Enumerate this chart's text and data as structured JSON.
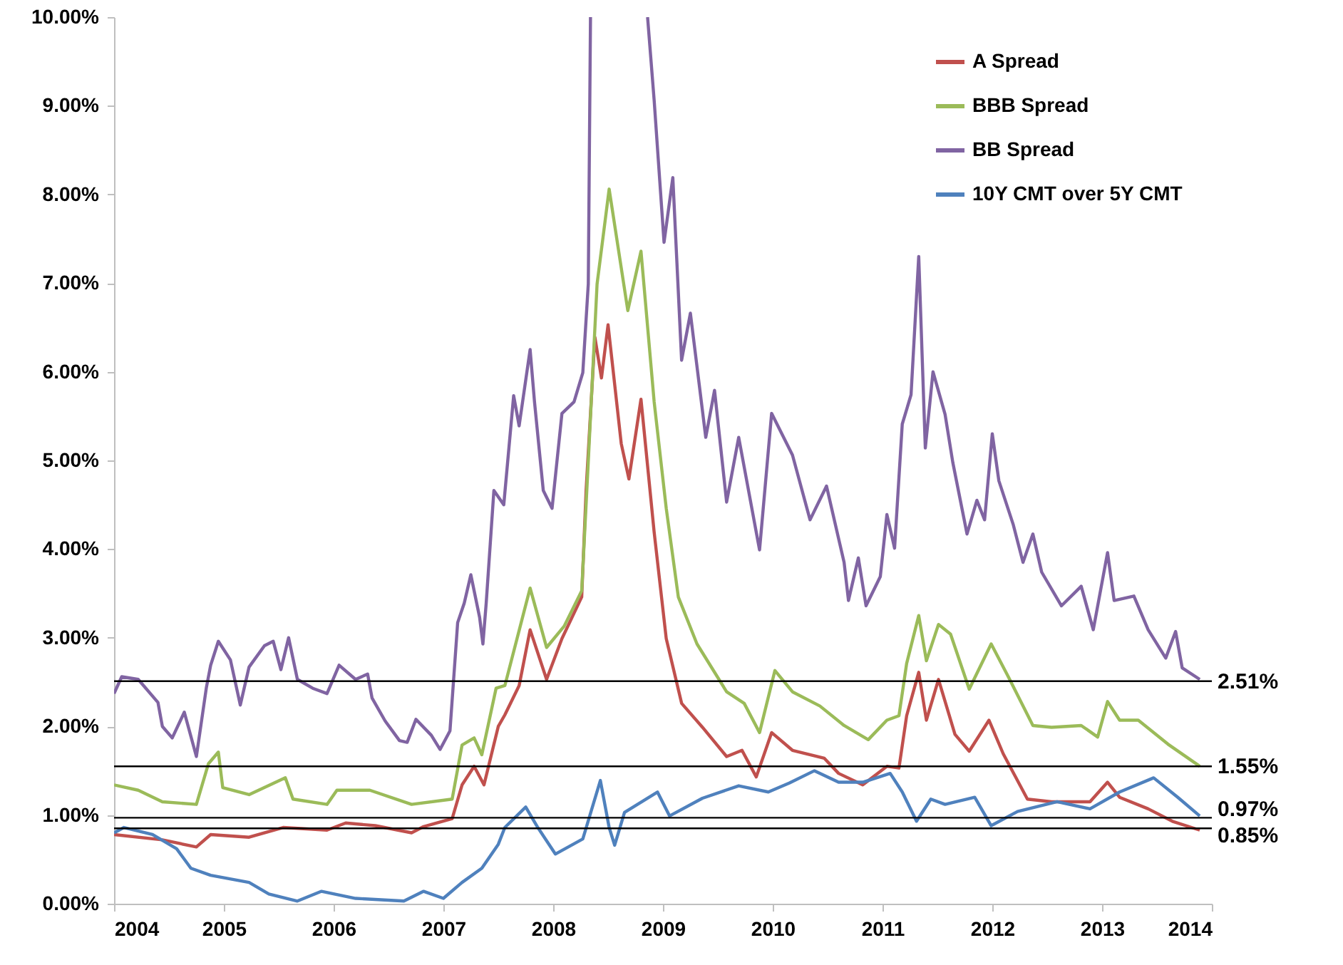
{
  "chart_data": {
    "type": "line",
    "xlim": [
      2004,
      2014
    ],
    "xticks": [
      2004,
      2005,
      2006,
      2007,
      2008,
      2009,
      2010,
      2011,
      2012,
      2013,
      2014
    ],
    "ylim": [
      0,
      10
    ],
    "yticks": [
      {
        "value": 0,
        "label": "0.00%"
      },
      {
        "value": 1,
        "label": "1.00%"
      },
      {
        "value": 2,
        "label": "2.00%"
      },
      {
        "value": 3,
        "label": "3.00%"
      },
      {
        "value": 4,
        "label": "4.00%"
      },
      {
        "value": 5,
        "label": "5.00%"
      },
      {
        "value": 6,
        "label": "6.00%"
      },
      {
        "value": 7,
        "label": "7.00%"
      },
      {
        "value": 8,
        "label": "8.00%"
      },
      {
        "value": 9,
        "label": "9.00%"
      },
      {
        "value": 10,
        "label": "10.00%"
      }
    ],
    "grid": false,
    "legend": "top right",
    "marker": "none",
    "line_style": "solid",
    "series": [
      {
        "name": "A Spread",
        "color": "#c0504d",
        "x": [
          2004.0,
          2004.44,
          2004.75,
          2004.88,
          2005.23,
          2005.54,
          2005.94,
          2006.11,
          2006.38,
          2006.71,
          2006.82,
          2007.08,
          2007.17,
          2007.28,
          2007.37,
          2007.5,
          2007.56,
          2007.69,
          2007.79,
          2007.94,
          2008.08,
          2008.26,
          2008.3,
          2008.38,
          2008.44,
          2008.5,
          2008.62,
          2008.69,
          2008.8,
          2008.92,
          2009.03,
          2009.17,
          2009.36,
          2009.58,
          2009.72,
          2009.85,
          2009.99,
          2010.18,
          2010.47,
          2010.6,
          2010.82,
          2011.04,
          2011.15,
          2011.22,
          2011.33,
          2011.4,
          2011.51,
          2011.66,
          2011.79,
          2011.97,
          2012.1,
          2012.32,
          2012.54,
          2012.89,
          2013.05,
          2013.16,
          2013.42,
          2013.64,
          2013.89
        ],
        "values": [
          0.78,
          0.72,
          0.64,
          0.78,
          0.75,
          0.86,
          0.83,
          0.91,
          0.88,
          0.8,
          0.87,
          0.96,
          1.34,
          1.55,
          1.34,
          2.0,
          2.13,
          2.46,
          3.09,
          2.53,
          2.99,
          3.46,
          4.66,
          6.39,
          5.93,
          6.53,
          5.19,
          4.79,
          5.69,
          4.19,
          2.99,
          2.26,
          1.99,
          1.66,
          1.73,
          1.43,
          1.93,
          1.73,
          1.64,
          1.47,
          1.34,
          1.55,
          1.53,
          2.12,
          2.61,
          2.07,
          2.53,
          1.91,
          1.72,
          2.07,
          1.69,
          1.18,
          1.15,
          1.15,
          1.37,
          1.2,
          1.07,
          0.93,
          0.83
        ]
      },
      {
        "name": "BBB Spread",
        "color": "#9bbb59",
        "x": [
          2004.0,
          2004.22,
          2004.44,
          2004.75,
          2004.86,
          2004.95,
          2004.99,
          2005.23,
          2005.56,
          2005.63,
          2005.94,
          2006.03,
          2006.33,
          2006.71,
          2007.08,
          2007.17,
          2007.28,
          2007.35,
          2007.48,
          2007.56,
          2007.79,
          2007.94,
          2008.1,
          2008.26,
          2008.32,
          2008.4,
          2008.51,
          2008.68,
          2008.8,
          2008.92,
          2009.03,
          2009.14,
          2009.31,
          2009.58,
          2009.74,
          2009.88,
          2010.02,
          2010.18,
          2010.43,
          2010.65,
          2010.87,
          2011.04,
          2011.15,
          2011.22,
          2011.33,
          2011.4,
          2011.51,
          2011.62,
          2011.79,
          2011.99,
          2012.15,
          2012.37,
          2012.54,
          2012.81,
          2012.96,
          2013.05,
          2013.16,
          2013.33,
          2013.6,
          2013.89
        ],
        "values": [
          1.34,
          1.28,
          1.15,
          1.12,
          1.58,
          1.71,
          1.31,
          1.23,
          1.42,
          1.18,
          1.12,
          1.28,
          1.28,
          1.12,
          1.18,
          1.79,
          1.87,
          1.68,
          2.43,
          2.46,
          3.56,
          2.89,
          3.13,
          3.53,
          4.99,
          6.99,
          8.06,
          6.69,
          7.36,
          5.66,
          4.46,
          3.46,
          2.93,
          2.39,
          2.26,
          1.93,
          2.63,
          2.39,
          2.23,
          2.01,
          1.85,
          2.07,
          2.12,
          2.71,
          3.25,
          2.74,
          3.15,
          3.04,
          2.42,
          2.93,
          2.55,
          2.01,
          1.99,
          2.01,
          1.88,
          2.28,
          2.07,
          2.07,
          1.8,
          1.55
        ]
      },
      {
        "name": "BB Spread",
        "color": "#8064a2",
        "x": [
          2004.0,
          2004.07,
          2004.22,
          2004.4,
          2004.44,
          2004.53,
          2004.64,
          2004.75,
          2004.84,
          2004.88,
          2004.95,
          2005.06,
          2005.15,
          2005.23,
          2005.37,
          2005.45,
          2005.52,
          2005.59,
          2005.67,
          2005.81,
          2005.94,
          2006.05,
          2006.2,
          2006.31,
          2006.35,
          2006.47,
          2006.6,
          2006.67,
          2006.75,
          2006.89,
          2006.97,
          2007.06,
          2007.13,
          2007.19,
          2007.25,
          2007.33,
          2007.36,
          2007.39,
          2007.46,
          2007.55,
          2007.64,
          2007.69,
          2007.79,
          2007.83,
          2007.91,
          2007.99,
          2008.08,
          2008.19,
          2008.27,
          2008.32,
          2008.34,
          2008.6,
          2008.86,
          2008.92,
          2009.01,
          2009.09,
          2009.17,
          2009.25,
          2009.39,
          2009.47,
          2009.58,
          2009.69,
          2009.88,
          2009.99,
          2010.18,
          2010.34,
          2010.49,
          2010.65,
          2010.69,
          2010.78,
          2010.85,
          2010.98,
          2011.04,
          2011.11,
          2011.18,
          2011.26,
          2011.33,
          2011.39,
          2011.46,
          2011.57,
          2011.64,
          2011.77,
          2011.86,
          2011.93,
          2012.0,
          2012.06,
          2012.19,
          2012.28,
          2012.37,
          2012.45,
          2012.63,
          2012.81,
          2012.92,
          2013.05,
          2013.11,
          2013.29,
          2013.42,
          2013.58,
          2013.67,
          2013.73,
          2013.89
        ],
        "values": [
          2.37,
          2.56,
          2.53,
          2.27,
          2.0,
          1.87,
          2.16,
          1.66,
          2.43,
          2.69,
          2.96,
          2.75,
          2.24,
          2.67,
          2.91,
          2.96,
          2.64,
          3.0,
          2.53,
          2.43,
          2.37,
          2.69,
          2.53,
          2.59,
          2.32,
          2.06,
          1.84,
          1.82,
          2.08,
          1.9,
          1.74,
          1.95,
          3.17,
          3.39,
          3.71,
          3.23,
          2.93,
          3.39,
          4.66,
          4.5,
          5.73,
          5.39,
          6.25,
          5.66,
          4.66,
          4.46,
          5.53,
          5.66,
          5.99,
          6.99,
          10,
          null,
          10,
          9.06,
          7.46,
          8.19,
          6.13,
          6.66,
          5.26,
          5.79,
          4.53,
          5.26,
          3.99,
          5.53,
          5.06,
          4.33,
          4.71,
          3.85,
          3.42,
          3.9,
          3.36,
          3.69,
          4.39,
          4.01,
          5.41,
          5.74,
          7.3,
          5.14,
          6.0,
          5.52,
          4.98,
          4.17,
          4.55,
          4.33,
          5.3,
          4.77,
          4.28,
          3.85,
          4.17,
          3.74,
          3.36,
          3.58,
          3.09,
          3.96,
          3.42,
          3.47,
          3.09,
          2.77,
          3.07,
          2.66,
          2.53
        ]
      },
      {
        "name": "10Y CMT over 5Y CMT",
        "color": "#4f81bd",
        "x": [
          2004.0,
          2004.09,
          2004.35,
          2004.57,
          2004.7,
          2004.88,
          2005.23,
          2005.41,
          2005.67,
          2005.89,
          2006.2,
          2006.64,
          2006.82,
          2007.0,
          2007.17,
          2007.35,
          2007.5,
          2007.56,
          2007.75,
          2007.86,
          2008.02,
          2008.27,
          2008.43,
          2008.51,
          2008.56,
          2008.65,
          2008.95,
          2009.06,
          2009.36,
          2009.69,
          2009.96,
          2010.15,
          2010.38,
          2010.6,
          2010.82,
          2011.07,
          2011.18,
          2011.31,
          2011.44,
          2011.57,
          2011.84,
          2011.99,
          2012.23,
          2012.59,
          2012.89,
          2013.16,
          2013.47,
          2013.69,
          2013.89
        ],
        "values": [
          0.8,
          0.86,
          0.78,
          0.62,
          0.4,
          0.32,
          0.24,
          0.11,
          0.03,
          0.14,
          0.06,
          0.03,
          0.14,
          0.06,
          0.24,
          0.4,
          0.67,
          0.86,
          1.09,
          0.86,
          0.56,
          0.73,
          1.39,
          0.86,
          0.66,
          1.03,
          1.26,
          0.99,
          1.19,
          1.33,
          1.26,
          1.36,
          1.5,
          1.37,
          1.37,
          1.47,
          1.26,
          0.93,
          1.18,
          1.12,
          1.2,
          0.88,
          1.04,
          1.15,
          1.07,
          1.26,
          1.42,
          1.2,
          0.99
        ]
      }
    ],
    "ref_lines": [
      {
        "axis": "y",
        "value": 2.51,
        "label": "2.51%",
        "color": "#000000"
      },
      {
        "axis": "y",
        "value": 1.55,
        "label": "1.55%",
        "color": "#000000"
      },
      {
        "axis": "y",
        "value": 0.97,
        "label": "0.97%",
        "color": "#000000"
      },
      {
        "axis": "y",
        "value": 0.85,
        "label": "0.85%",
        "color": "#000000"
      }
    ]
  }
}
